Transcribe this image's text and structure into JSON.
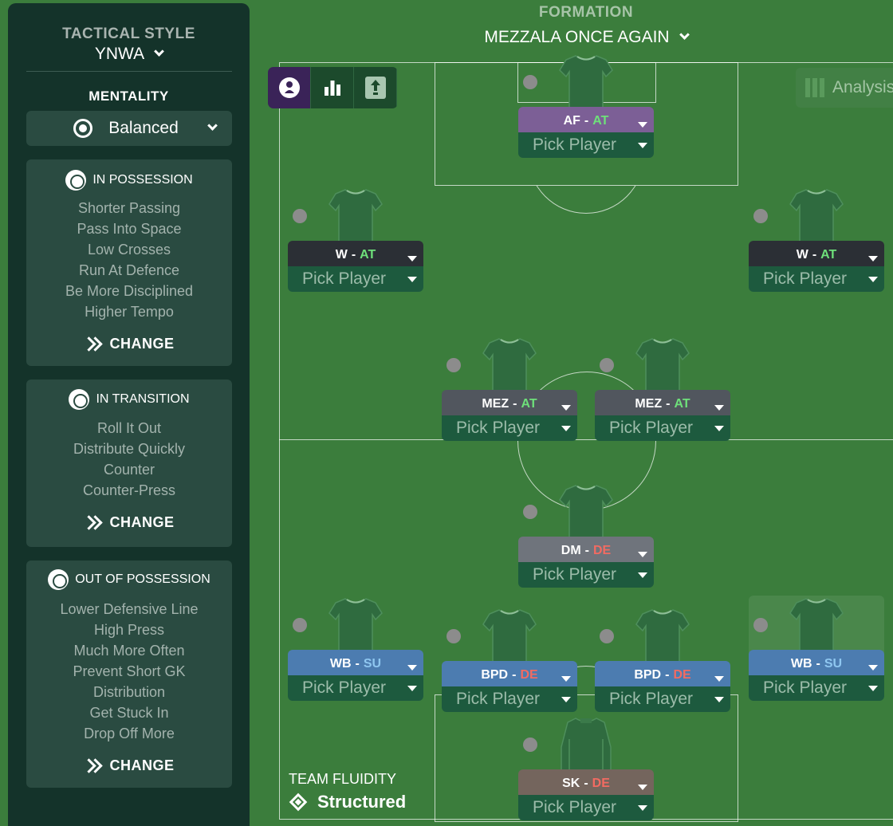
{
  "sidebar": {
    "tactical_style_label": "TACTICAL STYLE",
    "tactical_style_value": "YNWA",
    "mentality_label": "MENTALITY",
    "mentality_value": "Balanced",
    "in_possession": {
      "title": "IN POSSESSION",
      "items": [
        "Shorter Passing",
        "Pass Into Space",
        "Low Crosses",
        "Run At Defence",
        "Be More Disciplined",
        "Higher Tempo"
      ],
      "change": "CHANGE"
    },
    "in_transition": {
      "title": "IN TRANSITION",
      "items": [
        "Roll It Out",
        "Distribute Quickly",
        "Counter",
        "Counter-Press"
      ],
      "change": "CHANGE"
    },
    "out_of_possession": {
      "title": "OUT OF POSSESSION",
      "items": [
        "Lower Defensive Line",
        "High Press",
        "Much More Often",
        "Prevent Short GK",
        "Distribution",
        "Get Stuck In",
        "Drop Off More"
      ],
      "change": "CHANGE"
    }
  },
  "formation": {
    "label": "FORMATION",
    "name": "MEZZALA ONCE AGAIN"
  },
  "toolbar": {
    "icons": [
      "player-profile-icon",
      "bar-chart-icon",
      "upload-icon"
    ]
  },
  "analysis_label": "Analysis",
  "players": [
    {
      "role": "AF",
      "duty": "AT",
      "pick": "Pick Player"
    },
    {
      "role": "W",
      "duty": "AT",
      "pick": "Pick Player"
    },
    {
      "role": "W",
      "duty": "AT",
      "pick": "Pick Player"
    },
    {
      "role": "MEZ",
      "duty": "AT",
      "pick": "Pick Player"
    },
    {
      "role": "MEZ",
      "duty": "AT",
      "pick": "Pick Player"
    },
    {
      "role": "DM",
      "duty": "DE",
      "pick": "Pick Player"
    },
    {
      "role": "WB",
      "duty": "SU",
      "pick": "Pick Player"
    },
    {
      "role": "BPD",
      "duty": "DE",
      "pick": "Pick Player"
    },
    {
      "role": "BPD",
      "duty": "DE",
      "pick": "Pick Player"
    },
    {
      "role": "WB",
      "duty": "SU",
      "pick": "Pick Player"
    },
    {
      "role": "SK",
      "duty": "DE",
      "pick": "Pick Player"
    }
  ],
  "team_fluidity": {
    "label": "TEAM FLUIDITY",
    "value": "Structured"
  },
  "colors": {
    "pitch": "#3b7d3c",
    "sidebar": "#14332a",
    "attack_duty": "#6ee07a",
    "support_duty": "#8fc7f0",
    "defend_duty": "#f26b62"
  }
}
